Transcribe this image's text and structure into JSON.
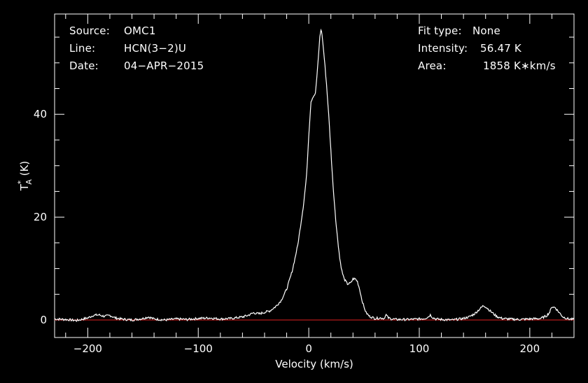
{
  "info_left": {
    "source_label": "Source:",
    "source_value": "OMC1",
    "line_label": "Line:",
    "line_value": "HCN(3−2)U",
    "date_label": "Date:",
    "date_value": "04−APR−2015"
  },
  "info_right": {
    "fit_label": "Fit type:",
    "fit_value": "None",
    "intensity_label": "Intensity:",
    "intensity_value": "56.47 K",
    "area_label": "Area:",
    "area_value": "1858 K∗km/s"
  },
  "chart_data": {
    "type": "line",
    "xlabel": "Velocity (km/s)",
    "ylabel_main": "T",
    "ylabel_sup": "*",
    "ylabel_sub": "A",
    "ylabel_unit": " (K)",
    "xlim": [
      -230,
      240
    ],
    "ylim": [
      -3.4,
      59.5
    ],
    "xticks": [
      -200,
      -100,
      0,
      100,
      200
    ],
    "xtick_labels": [
      "−200",
      "−100",
      "0",
      "100",
      "200"
    ],
    "yticks": [
      0,
      20,
      40
    ],
    "ytick_labels": [
      "0",
      "20",
      "40"
    ],
    "baseline": 0,
    "colors": {
      "axes": "#ffffff",
      "series": "#ffffff",
      "baseline": "#e02020",
      "background": "#000000"
    },
    "series": [
      {
        "x": [
          -230,
          -220,
          -210,
          -200,
          -195,
          -190,
          -185,
          -180,
          -175,
          -170,
          -160,
          -150,
          -145,
          -140,
          -130,
          -120,
          -110,
          -100,
          -90,
          -80,
          -70,
          -60,
          -55,
          -50,
          -45,
          -40,
          -35,
          -30,
          -25,
          -20,
          -15,
          -10,
          -5,
          -2,
          0,
          2,
          4,
          6,
          8,
          10,
          11,
          12,
          14,
          16,
          18,
          20,
          22,
          25,
          28,
          30,
          32,
          35,
          38,
          40,
          42,
          44,
          46,
          48,
          50,
          52,
          55,
          60,
          65,
          68,
          70,
          72,
          75,
          80,
          90,
          100,
          105,
          108,
          110,
          112,
          115,
          120,
          130,
          140,
          145,
          150,
          155,
          158,
          160,
          165,
          170,
          175,
          180,
          190,
          200,
          210,
          215,
          218,
          220,
          223,
          226,
          230,
          235,
          240
        ],
        "y": [
          0.2,
          0.1,
          -0.1,
          0.4,
          0.9,
          1.0,
          0.7,
          0.9,
          0.4,
          0.2,
          0.0,
          0.3,
          0.6,
          0.2,
          0.0,
          0.2,
          0.1,
          0.3,
          0.4,
          0.2,
          0.3,
          0.6,
          0.9,
          1.4,
          1.2,
          1.5,
          1.8,
          2.6,
          3.8,
          6.0,
          9.5,
          14.5,
          22.0,
          28.0,
          36.0,
          42.5,
          43.5,
          44.0,
          49.0,
          55.0,
          56.5,
          55.5,
          51.0,
          46.0,
          40.0,
          33.0,
          26.0,
          18.0,
          12.0,
          9.5,
          8.0,
          7.0,
          7.2,
          8.0,
          8.0,
          7.5,
          6.0,
          4.0,
          2.5,
          1.4,
          0.7,
          0.3,
          0.4,
          0.3,
          1.0,
          0.4,
          0.2,
          0.1,
          0.1,
          0.2,
          0.3,
          0.6,
          1.0,
          0.5,
          0.2,
          0.1,
          0.0,
          0.3,
          0.6,
          1.2,
          2.2,
          2.8,
          2.6,
          1.6,
          0.7,
          0.3,
          0.2,
          0.1,
          0.2,
          0.3,
          0.8,
          1.5,
          2.6,
          2.4,
          1.6,
          0.6,
          0.2,
          0.1
        ]
      }
    ]
  }
}
